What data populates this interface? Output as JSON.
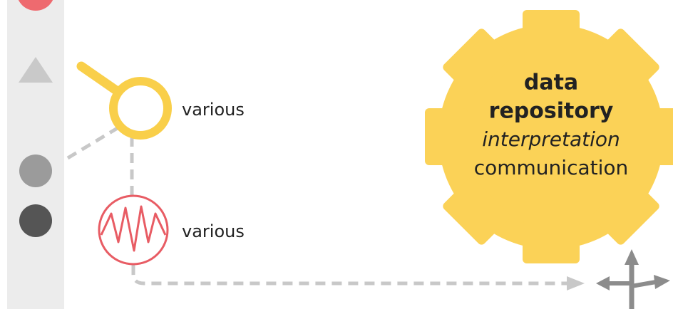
{
  "nodes": [
    {
      "label": "various"
    },
    {
      "label": "various"
    }
  ],
  "repository": {
    "lines": [
      "data",
      "repository",
      "interpretation",
      "communication"
    ]
  }
}
